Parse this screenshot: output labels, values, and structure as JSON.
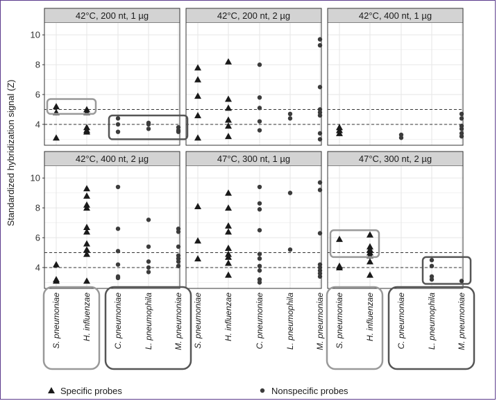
{
  "chart_data": {
    "type": "scatter",
    "ylabel": "Standardized hybridization signal (Z)",
    "ylim": [
      2.6,
      10.8
    ],
    "yticks": [
      "4",
      "6",
      "8",
      "10"
    ],
    "reference_lines": [
      4,
      5
    ],
    "grid": true,
    "categories": [
      "S. pneumoniae",
      "H. influenzae",
      "C. pneumoniae",
      "L. pneumophila",
      "M. pneumoniae"
    ],
    "legend": {
      "placement": "bottom",
      "entries": [
        {
          "key": "specific",
          "label": "Specific probes",
          "marker": "triangle"
        },
        {
          "key": "nonspecific",
          "label": "Nonspecific probes",
          "marker": "circle"
        }
      ]
    },
    "panels": [
      {
        "title": "42°C, 200 nt, 1 µg",
        "points": [
          {
            "cat": 0,
            "y": 5.2,
            "type": "specific"
          },
          {
            "cat": 0,
            "y": 4.8,
            "type": "specific"
          },
          {
            "cat": 0,
            "y": 3.1,
            "type": "specific"
          },
          {
            "cat": 1,
            "y": 5.0,
            "type": "specific"
          },
          {
            "cat": 1,
            "y": 4.8,
            "type": "specific"
          },
          {
            "cat": 1,
            "y": 3.8,
            "type": "specific"
          },
          {
            "cat": 1,
            "y": 3.6,
            "type": "specific"
          },
          {
            "cat": 1,
            "y": 3.5,
            "type": "specific"
          },
          {
            "cat": 2,
            "y": 4.4,
            "type": "nonspecific"
          },
          {
            "cat": 2,
            "y": 4.0,
            "type": "nonspecific"
          },
          {
            "cat": 2,
            "y": 3.5,
            "type": "nonspecific"
          },
          {
            "cat": 3,
            "y": 4.1,
            "type": "nonspecific"
          },
          {
            "cat": 3,
            "y": 4.0,
            "type": "nonspecific"
          },
          {
            "cat": 3,
            "y": 3.7,
            "type": "nonspecific"
          },
          {
            "cat": 4,
            "y": 3.8,
            "type": "nonspecific"
          },
          {
            "cat": 4,
            "y": 3.6,
            "type": "nonspecific"
          },
          {
            "cat": 4,
            "y": 3.5,
            "type": "nonspecific"
          }
        ]
      },
      {
        "title": "42°C, 200 nt, 2 µg",
        "points": [
          {
            "cat": 0,
            "y": 7.8,
            "type": "specific"
          },
          {
            "cat": 0,
            "y": 7.0,
            "type": "specific"
          },
          {
            "cat": 0,
            "y": 5.9,
            "type": "specific"
          },
          {
            "cat": 0,
            "y": 4.6,
            "type": "specific"
          },
          {
            "cat": 0,
            "y": 3.1,
            "type": "specific"
          },
          {
            "cat": 1,
            "y": 8.2,
            "type": "specific"
          },
          {
            "cat": 1,
            "y": 5.7,
            "type": "specific"
          },
          {
            "cat": 1,
            "y": 5.1,
            "type": "specific"
          },
          {
            "cat": 1,
            "y": 4.3,
            "type": "specific"
          },
          {
            "cat": 1,
            "y": 3.9,
            "type": "specific"
          },
          {
            "cat": 1,
            "y": 3.2,
            "type": "specific"
          },
          {
            "cat": 2,
            "y": 8.0,
            "type": "nonspecific"
          },
          {
            "cat": 2,
            "y": 5.8,
            "type": "nonspecific"
          },
          {
            "cat": 2,
            "y": 5.1,
            "type": "nonspecific"
          },
          {
            "cat": 2,
            "y": 4.2,
            "type": "nonspecific"
          },
          {
            "cat": 2,
            "y": 3.6,
            "type": "nonspecific"
          },
          {
            "cat": 3,
            "y": 4.7,
            "type": "nonspecific"
          },
          {
            "cat": 3,
            "y": 4.4,
            "type": "nonspecific"
          },
          {
            "cat": 4,
            "y": 9.7,
            "type": "nonspecific"
          },
          {
            "cat": 4,
            "y": 9.3,
            "type": "nonspecific"
          },
          {
            "cat": 4,
            "y": 6.5,
            "type": "nonspecific"
          },
          {
            "cat": 4,
            "y": 5.0,
            "type": "nonspecific"
          },
          {
            "cat": 4,
            "y": 4.8,
            "type": "nonspecific"
          },
          {
            "cat": 4,
            "y": 4.6,
            "type": "nonspecific"
          },
          {
            "cat": 4,
            "y": 3.4,
            "type": "nonspecific"
          },
          {
            "cat": 4,
            "y": 3.0,
            "type": "nonspecific"
          }
        ]
      },
      {
        "title": "42°C, 400 nt, 1 µg",
        "points": [
          {
            "cat": 0,
            "y": 3.8,
            "type": "specific"
          },
          {
            "cat": 0,
            "y": 3.6,
            "type": "specific"
          },
          {
            "cat": 0,
            "y": 3.4,
            "type": "specific"
          },
          {
            "cat": 2,
            "y": 3.3,
            "type": "nonspecific"
          },
          {
            "cat": 2,
            "y": 3.1,
            "type": "nonspecific"
          },
          {
            "cat": 4,
            "y": 4.7,
            "type": "nonspecific"
          },
          {
            "cat": 4,
            "y": 4.4,
            "type": "nonspecific"
          },
          {
            "cat": 4,
            "y": 3.9,
            "type": "nonspecific"
          },
          {
            "cat": 4,
            "y": 3.7,
            "type": "nonspecific"
          },
          {
            "cat": 4,
            "y": 3.4,
            "type": "nonspecific"
          },
          {
            "cat": 4,
            "y": 3.2,
            "type": "nonspecific"
          }
        ]
      },
      {
        "title": "42°C, 400 nt, 2 µg",
        "points": [
          {
            "cat": 0,
            "y": 4.2,
            "type": "specific"
          },
          {
            "cat": 0,
            "y": 3.2,
            "type": "specific"
          },
          {
            "cat": 0,
            "y": 3.1,
            "type": "specific"
          },
          {
            "cat": 1,
            "y": 9.3,
            "type": "specific"
          },
          {
            "cat": 1,
            "y": 8.8,
            "type": "specific"
          },
          {
            "cat": 1,
            "y": 8.2,
            "type": "specific"
          },
          {
            "cat": 1,
            "y": 8.0,
            "type": "specific"
          },
          {
            "cat": 1,
            "y": 6.7,
            "type": "specific"
          },
          {
            "cat": 1,
            "y": 6.4,
            "type": "specific"
          },
          {
            "cat": 1,
            "y": 5.6,
            "type": "specific"
          },
          {
            "cat": 1,
            "y": 5.2,
            "type": "specific"
          },
          {
            "cat": 1,
            "y": 4.9,
            "type": "specific"
          },
          {
            "cat": 1,
            "y": 3.1,
            "type": "specific"
          },
          {
            "cat": 2,
            "y": 9.4,
            "type": "nonspecific"
          },
          {
            "cat": 2,
            "y": 6.6,
            "type": "nonspecific"
          },
          {
            "cat": 2,
            "y": 5.1,
            "type": "nonspecific"
          },
          {
            "cat": 2,
            "y": 4.2,
            "type": "nonspecific"
          },
          {
            "cat": 2,
            "y": 3.4,
            "type": "nonspecific"
          },
          {
            "cat": 2,
            "y": 3.3,
            "type": "nonspecific"
          },
          {
            "cat": 3,
            "y": 7.2,
            "type": "nonspecific"
          },
          {
            "cat": 3,
            "y": 5.4,
            "type": "nonspecific"
          },
          {
            "cat": 3,
            "y": 4.4,
            "type": "nonspecific"
          },
          {
            "cat": 3,
            "y": 4.0,
            "type": "nonspecific"
          },
          {
            "cat": 3,
            "y": 3.7,
            "type": "nonspecific"
          },
          {
            "cat": 4,
            "y": 6.6,
            "type": "nonspecific"
          },
          {
            "cat": 4,
            "y": 6.4,
            "type": "nonspecific"
          },
          {
            "cat": 4,
            "y": 5.4,
            "type": "nonspecific"
          },
          {
            "cat": 4,
            "y": 4.8,
            "type": "nonspecific"
          },
          {
            "cat": 4,
            "y": 4.6,
            "type": "nonspecific"
          },
          {
            "cat": 4,
            "y": 4.4,
            "type": "nonspecific"
          },
          {
            "cat": 4,
            "y": 4.1,
            "type": "nonspecific"
          }
        ]
      },
      {
        "title": "47°C, 300 nt, 1 µg",
        "points": [
          {
            "cat": 0,
            "y": 8.1,
            "type": "specific"
          },
          {
            "cat": 0,
            "y": 5.8,
            "type": "specific"
          },
          {
            "cat": 0,
            "y": 4.6,
            "type": "specific"
          },
          {
            "cat": 1,
            "y": 9.0,
            "type": "specific"
          },
          {
            "cat": 1,
            "y": 8.0,
            "type": "specific"
          },
          {
            "cat": 1,
            "y": 6.8,
            "type": "specific"
          },
          {
            "cat": 1,
            "y": 6.4,
            "type": "specific"
          },
          {
            "cat": 1,
            "y": 5.3,
            "type": "specific"
          },
          {
            "cat": 1,
            "y": 4.9,
            "type": "specific"
          },
          {
            "cat": 1,
            "y": 4.7,
            "type": "specific"
          },
          {
            "cat": 1,
            "y": 4.3,
            "type": "specific"
          },
          {
            "cat": 1,
            "y": 3.5,
            "type": "specific"
          },
          {
            "cat": 2,
            "y": 9.4,
            "type": "nonspecific"
          },
          {
            "cat": 2,
            "y": 8.3,
            "type": "nonspecific"
          },
          {
            "cat": 2,
            "y": 7.9,
            "type": "nonspecific"
          },
          {
            "cat": 2,
            "y": 6.5,
            "type": "nonspecific"
          },
          {
            "cat": 2,
            "y": 4.9,
            "type": "nonspecific"
          },
          {
            "cat": 2,
            "y": 4.6,
            "type": "nonspecific"
          },
          {
            "cat": 2,
            "y": 4.1,
            "type": "nonspecific"
          },
          {
            "cat": 2,
            "y": 3.8,
            "type": "nonspecific"
          },
          {
            "cat": 2,
            "y": 3.2,
            "type": "nonspecific"
          },
          {
            "cat": 2,
            "y": 3.0,
            "type": "nonspecific"
          },
          {
            "cat": 3,
            "y": 9.0,
            "type": "nonspecific"
          },
          {
            "cat": 3,
            "y": 5.2,
            "type": "nonspecific"
          },
          {
            "cat": 4,
            "y": 9.7,
            "type": "nonspecific"
          },
          {
            "cat": 4,
            "y": 9.2,
            "type": "nonspecific"
          },
          {
            "cat": 4,
            "y": 6.3,
            "type": "nonspecific"
          },
          {
            "cat": 4,
            "y": 4.2,
            "type": "nonspecific"
          },
          {
            "cat": 4,
            "y": 4.0,
            "type": "nonspecific"
          },
          {
            "cat": 4,
            "y": 3.8,
            "type": "nonspecific"
          },
          {
            "cat": 4,
            "y": 3.6,
            "type": "nonspecific"
          },
          {
            "cat": 4,
            "y": 3.4,
            "type": "nonspecific"
          }
        ]
      },
      {
        "title": "47°C, 300 nt, 2 µg",
        "points": [
          {
            "cat": 0,
            "y": 5.9,
            "type": "specific"
          },
          {
            "cat": 0,
            "y": 4.1,
            "type": "specific"
          },
          {
            "cat": 0,
            "y": 4.0,
            "type": "specific"
          },
          {
            "cat": 1,
            "y": 6.2,
            "type": "specific"
          },
          {
            "cat": 1,
            "y": 5.4,
            "type": "specific"
          },
          {
            "cat": 1,
            "y": 5.2,
            "type": "specific"
          },
          {
            "cat": 1,
            "y": 5.0,
            "type": "specific"
          },
          {
            "cat": 1,
            "y": 4.8,
            "type": "specific"
          },
          {
            "cat": 1,
            "y": 4.4,
            "type": "specific"
          },
          {
            "cat": 1,
            "y": 3.5,
            "type": "specific"
          },
          {
            "cat": 3,
            "y": 4.5,
            "type": "nonspecific"
          },
          {
            "cat": 3,
            "y": 4.1,
            "type": "nonspecific"
          },
          {
            "cat": 3,
            "y": 3.4,
            "type": "nonspecific"
          },
          {
            "cat": 3,
            "y": 3.2,
            "type": "nonspecific"
          },
          {
            "cat": 4,
            "y": 3.1,
            "type": "nonspecific"
          }
        ]
      }
    ],
    "highlight_boxes": [
      {
        "panel": 0,
        "cats": [
          0,
          1
        ],
        "y": [
          4.7,
          5.7
        ],
        "color": "#999999"
      },
      {
        "panel": 0,
        "cats": [
          2,
          4
        ],
        "y": [
          3.0,
          4.6
        ],
        "color": "#555555"
      },
      {
        "panel": 5,
        "cats": [
          0,
          1
        ],
        "y": [
          4.7,
          6.5
        ],
        "color": "#999999"
      },
      {
        "panel": 5,
        "cats": [
          3,
          4
        ],
        "y": [
          2.9,
          4.7
        ],
        "color": "#555555"
      }
    ],
    "category_groups": [
      {
        "column": 0,
        "cats": [
          0,
          1
        ],
        "color": "#999999"
      },
      {
        "column": 0,
        "cats": [
          2,
          4
        ],
        "color": "#555555"
      },
      {
        "column": 2,
        "cats": [
          0,
          1
        ],
        "color": "#999999"
      },
      {
        "column": 2,
        "cats": [
          2,
          4
        ],
        "color": "#555555"
      }
    ],
    "colors": {
      "strip_bg": "#d3d3d3",
      "marker": "#1a1a1a",
      "nonspecific": "#3c3c3c",
      "grid": "#e6e6e6",
      "refline": "#333333",
      "frame": "#5b3a8c"
    }
  }
}
